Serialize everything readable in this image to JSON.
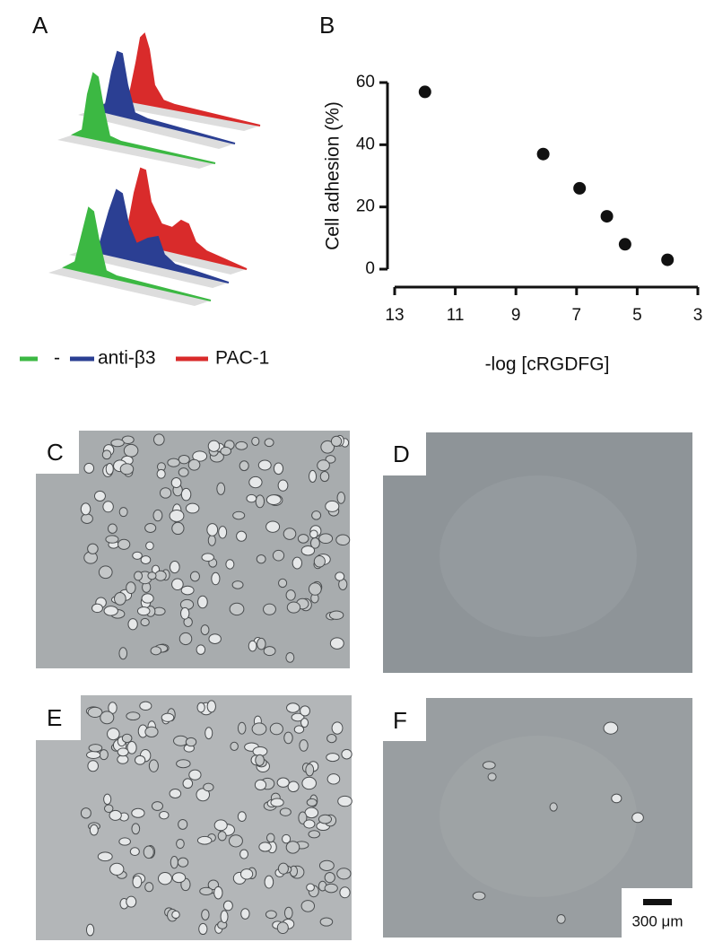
{
  "panel_labels": {
    "a": "A",
    "b": "B",
    "c": "C",
    "d": "D",
    "e": "E",
    "f": "F"
  },
  "legend": [
    {
      "name": "-",
      "color": "#3cb843"
    },
    {
      "name": "anti-β3",
      "color": "#2b3f93"
    },
    {
      "name": "PAC-1",
      "color": "#d92b2b"
    }
  ],
  "scale_bar": "300 μm",
  "chart_data": {
    "type": "scatter",
    "y_label": "Cell adhesion (%)",
    "x_label": "-log [cRGDFG]",
    "x": [
      12.0,
      8.1,
      6.9,
      6.0,
      5.4,
      4.0
    ],
    "values": [
      57,
      37,
      26,
      17,
      8,
      3
    ],
    "color": "#111111",
    "xlim": [
      13,
      3
    ],
    "xticks": [
      13,
      11,
      9,
      7,
      5,
      3
    ],
    "ylim": [
      0,
      60
    ],
    "yticks": [
      0,
      20,
      40,
      60
    ]
  }
}
